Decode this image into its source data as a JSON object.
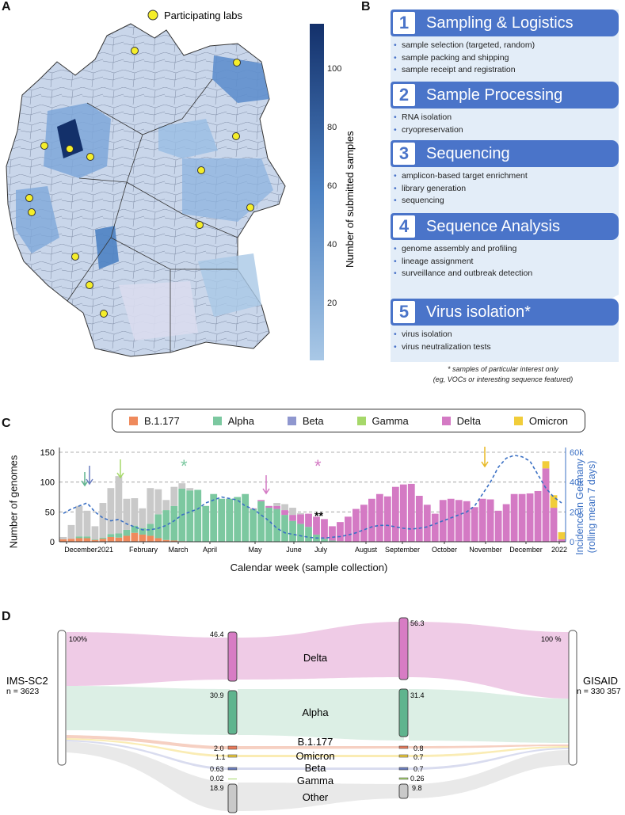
{
  "panels": {
    "a": "A",
    "b": "B",
    "c": "C",
    "d": "D"
  },
  "map": {
    "legend_label": "Participating labs",
    "colorbar_title": "Number of submitted samples",
    "colorbar_ticks": [
      "100",
      "80",
      "60",
      "40",
      "20"
    ],
    "colors": {
      "light": "#a9c8e6",
      "dark": "#13306a",
      "none": "#d7dae5",
      "lab": "#f5ee2a"
    }
  },
  "workflow": {
    "steps": [
      {
        "num": "1",
        "title": "Sampling & Logistics",
        "items": [
          "sample selection (targeted, random)",
          "sample packing and shipping",
          "sample receipt and registration"
        ]
      },
      {
        "num": "2",
        "title": "Sample Processing",
        "items": [
          "RNA isolation",
          "cryopreservation"
        ]
      },
      {
        "num": "3",
        "title": "Sequencing",
        "items": [
          "amplicon-based target enrichment",
          "library generation",
          "sequencing"
        ]
      },
      {
        "num": "4",
        "title": "Sequence Analysis",
        "items": [
          "genome assembly and profiling",
          "lineage assignment",
          "surveillance and outbreak detection"
        ]
      },
      {
        "num": "5",
        "title": "Virus isolation*",
        "items": [
          "virus isolation",
          "virus neutralization tests"
        ]
      }
    ],
    "footnote_1": "* samples of particular interest only",
    "footnote_2": "(eg, VOCs or interesting sequence featured)"
  },
  "legend": [
    {
      "label": "B.1.177",
      "color": "#ef8a5c"
    },
    {
      "label": "Alpha",
      "color": "#7cc8a0"
    },
    {
      "label": "Beta",
      "color": "#8f97cf"
    },
    {
      "label": "Gamma",
      "color": "#a6d86a"
    },
    {
      "label": "Delta",
      "color": "#d47ac4"
    },
    {
      "label": "Omicron",
      "color": "#f1cd3a"
    }
  ],
  "chart_data": {
    "type": "bar",
    "xlabel": "Calendar week (sample collection)",
    "ylabel": "Number of genomes",
    "ylabel2_line1": "Incidence in Germany",
    "ylabel2_line2": "(rolling mean 7 days)",
    "ylim": [
      0,
      150
    ],
    "y2lim": [
      0,
      60000
    ],
    "yticks": [
      "0",
      "50",
      "100",
      "150"
    ],
    "y2ticks": [
      "0",
      "20k",
      "40k",
      "60k"
    ],
    "month_labels": [
      "December",
      "2021",
      "February",
      "March",
      "April",
      "May",
      "June",
      "July",
      "August",
      "September",
      "October",
      "November",
      "December",
      "2022"
    ],
    "annotation_star": "*",
    "annotation_double": "**",
    "colors": {
      "other": "#c9c9c9",
      "B.1.177": "#ef8a5c",
      "Alpha": "#7cc8a0",
      "Beta": "#8f97cf",
      "Gamma": "#a6d86a",
      "Delta": "#d47ac4",
      "Omicron": "#f1cd3a",
      "incidence": "#3b70c4"
    },
    "bars": [
      {
        "total": 8,
        "B": 4,
        "A": 0,
        "D": 0,
        "O": 0
      },
      {
        "total": 28,
        "B": 5,
        "A": 0,
        "D": 0,
        "O": 0
      },
      {
        "total": 60,
        "B": 6,
        "A": 3,
        "D": 0,
        "O": 0
      },
      {
        "total": 52,
        "B": 6,
        "A": 3,
        "D": 0,
        "O": 0
      },
      {
        "total": 26,
        "B": 3,
        "A": 1,
        "D": 0,
        "O": 0
      },
      {
        "total": 65,
        "B": 5,
        "A": 2,
        "D": 0,
        "O": 0
      },
      {
        "total": 90,
        "B": 8,
        "A": 5,
        "D": 0,
        "O": 0
      },
      {
        "total": 110,
        "B": 7,
        "A": 7,
        "D": 0,
        "O": 0
      },
      {
        "total": 72,
        "B": 10,
        "A": 10,
        "D": 0,
        "O": 0
      },
      {
        "total": 73,
        "B": 15,
        "A": 12,
        "D": 0,
        "O": 0
      },
      {
        "total": 56,
        "B": 12,
        "A": 11,
        "D": 0,
        "O": 0
      },
      {
        "total": 90,
        "B": 10,
        "A": 20,
        "D": 0,
        "O": 0
      },
      {
        "total": 88,
        "B": 6,
        "A": 40,
        "D": 0,
        "O": 0
      },
      {
        "total": 70,
        "B": 3,
        "A": 50,
        "D": 0,
        "O": 0
      },
      {
        "total": 92,
        "B": 2,
        "A": 58,
        "D": 0,
        "O": 0
      },
      {
        "total": 98,
        "B": 1,
        "A": 88,
        "D": 0,
        "O": 0
      },
      {
        "total": 90,
        "B": 0,
        "A": 86,
        "D": 0,
        "O": 0
      },
      {
        "total": 87,
        "B": 0,
        "A": 87,
        "D": 0,
        "O": 0
      },
      {
        "total": 60,
        "B": 0,
        "A": 60,
        "D": 0,
        "O": 0
      },
      {
        "total": 80,
        "B": 0,
        "A": 80,
        "D": 0,
        "O": 0
      },
      {
        "total": 72,
        "B": 0,
        "A": 72,
        "D": 0,
        "O": 0
      },
      {
        "total": 72,
        "B": 0,
        "A": 72,
        "D": 0,
        "O": 0
      },
      {
        "total": 75,
        "B": 0,
        "A": 75,
        "D": 0,
        "O": 0
      },
      {
        "total": 80,
        "B": 0,
        "A": 80,
        "D": 0,
        "O": 0
      },
      {
        "total": 56,
        "B": 0,
        "A": 55,
        "D": 1,
        "O": 0
      },
      {
        "total": 70,
        "B": 0,
        "A": 68,
        "D": 2,
        "O": 0
      },
      {
        "total": 60,
        "B": 0,
        "A": 57,
        "D": 3,
        "O": 0
      },
      {
        "total": 65,
        "B": 0,
        "A": 55,
        "D": 5,
        "O": 0
      },
      {
        "total": 63,
        "B": 0,
        "A": 45,
        "D": 8,
        "O": 0
      },
      {
        "total": 57,
        "B": 0,
        "A": 35,
        "D": 10,
        "O": 0
      },
      {
        "total": 48,
        "B": 0,
        "A": 30,
        "D": 16,
        "O": 0
      },
      {
        "total": 47,
        "B": 0,
        "A": 25,
        "D": 22,
        "O": 0
      },
      {
        "total": 42,
        "B": 0,
        "A": 12,
        "D": 30,
        "O": 0
      },
      {
        "total": 38,
        "B": 0,
        "A": 5,
        "D": 33,
        "O": 0
      },
      {
        "total": 26,
        "B": 0,
        "A": 2,
        "D": 24,
        "O": 0
      },
      {
        "total": 33,
        "B": 0,
        "A": 1,
        "D": 32,
        "O": 0
      },
      {
        "total": 42,
        "B": 0,
        "A": 0,
        "D": 42,
        "O": 0
      },
      {
        "total": 55,
        "B": 0,
        "A": 0,
        "D": 55,
        "O": 0
      },
      {
        "total": 62,
        "B": 0,
        "A": 0,
        "D": 62,
        "O": 0
      },
      {
        "total": 72,
        "B": 0,
        "A": 0,
        "D": 72,
        "O": 0
      },
      {
        "total": 80,
        "B": 0,
        "A": 0,
        "D": 80,
        "O": 0
      },
      {
        "total": 76,
        "B": 0,
        "A": 0,
        "D": 76,
        "O": 0
      },
      {
        "total": 92,
        "B": 0,
        "A": 0,
        "D": 92,
        "O": 0
      },
      {
        "total": 96,
        "B": 0,
        "A": 0,
        "D": 96,
        "O": 0
      },
      {
        "total": 97,
        "B": 0,
        "A": 0,
        "D": 97,
        "O": 0
      },
      {
        "total": 77,
        "B": 0,
        "A": 0,
        "D": 77,
        "O": 0
      },
      {
        "total": 62,
        "B": 0,
        "A": 0,
        "D": 62,
        "O": 0
      },
      {
        "total": 47,
        "B": 0,
        "A": 0,
        "D": 47,
        "O": 0
      },
      {
        "total": 70,
        "B": 0,
        "A": 0,
        "D": 70,
        "O": 0
      },
      {
        "total": 72,
        "B": 0,
        "A": 0,
        "D": 72,
        "O": 0
      },
      {
        "total": 70,
        "B": 0,
        "A": 0,
        "D": 70,
        "O": 0
      },
      {
        "total": 68,
        "B": 0,
        "A": 0,
        "D": 68,
        "O": 0
      },
      {
        "total": 58,
        "B": 0,
        "A": 0,
        "D": 58,
        "O": 0
      },
      {
        "total": 72,
        "B": 0,
        "A": 0,
        "D": 72,
        "O": 0
      },
      {
        "total": 71,
        "B": 0,
        "A": 0,
        "D": 71,
        "O": 0
      },
      {
        "total": 52,
        "B": 0,
        "A": 0,
        "D": 52,
        "O": 0
      },
      {
        "total": 63,
        "B": 0,
        "A": 0,
        "D": 63,
        "O": 0
      },
      {
        "total": 80,
        "B": 0,
        "A": 0,
        "D": 80,
        "O": 0
      },
      {
        "total": 80,
        "B": 0,
        "A": 0,
        "D": 80,
        "O": 0
      },
      {
        "total": 81,
        "B": 0,
        "A": 0,
        "D": 81,
        "O": 0
      },
      {
        "total": 85,
        "B": 0,
        "A": 0,
        "D": 85,
        "O": 0
      },
      {
        "total": 135,
        "B": 0,
        "A": 0,
        "D": 123,
        "O": 12
      },
      {
        "total": 78,
        "B": 0,
        "A": 0,
        "D": 57,
        "O": 21
      },
      {
        "total": 16,
        "B": 0,
        "A": 0,
        "D": 4,
        "O": 12
      }
    ],
    "incidence": [
      19000,
      22000,
      24000,
      26000,
      20000,
      16000,
      14000,
      15000,
      12000,
      10000,
      8000,
      8000,
      9000,
      11000,
      14000,
      18000,
      20000,
      22000,
      26000,
      28000,
      30000,
      29000,
      28000,
      24000,
      22000,
      18000,
      14000,
      9000,
      6000,
      5000,
      4000,
      3000,
      2500,
      2500,
      3000,
      3500,
      4500,
      6000,
      8000,
      10000,
      11000,
      11000,
      10000,
      9000,
      8500,
      9000,
      10000,
      12000,
      14000,
      16000,
      18000,
      20000,
      24000,
      32000,
      40000,
      50000,
      56000,
      58000,
      57000,
      54000,
      45000,
      36000,
      30000,
      26000
    ]
  },
  "sankey": {
    "left_label": "IMS-SC2",
    "left_n": "n = 3623",
    "right_label": "GISAID",
    "right_n": "n = 330 357",
    "left_pct": "100%",
    "right_pct": "100 %",
    "rows": [
      {
        "name": "Delta",
        "v1": "46.4",
        "v2": "56.3",
        "color": "#d77cc4",
        "band": "#efcbe6"
      },
      {
        "name": "Alpha",
        "v1": "30.9",
        "v2": "31.4",
        "color": "#5fb48e",
        "band": "#dcefe5"
      },
      {
        "name": "B.1.177",
        "v1": "2.0",
        "v2": "0.8",
        "color": "#ea7a5a",
        "band": "#f6d0c2"
      },
      {
        "name": "Omicron",
        "v1": "1.1",
        "v2": "0.7",
        "color": "#f1cd3a",
        "band": "#faecb4"
      },
      {
        "name": "Beta",
        "v1": "0.63",
        "v2": "0.7",
        "color": "#6c7ebf",
        "band": "#d9dcef"
      },
      {
        "name": "Gamma",
        "v1": "0.02",
        "v2": "0.26",
        "color": "#a6d86a",
        "band": "#e5f2d2"
      },
      {
        "name": "Other",
        "v1": "18.9",
        "v2": "9.8",
        "color": "#c9c9c9",
        "band": "#e9e9e9"
      }
    ]
  }
}
